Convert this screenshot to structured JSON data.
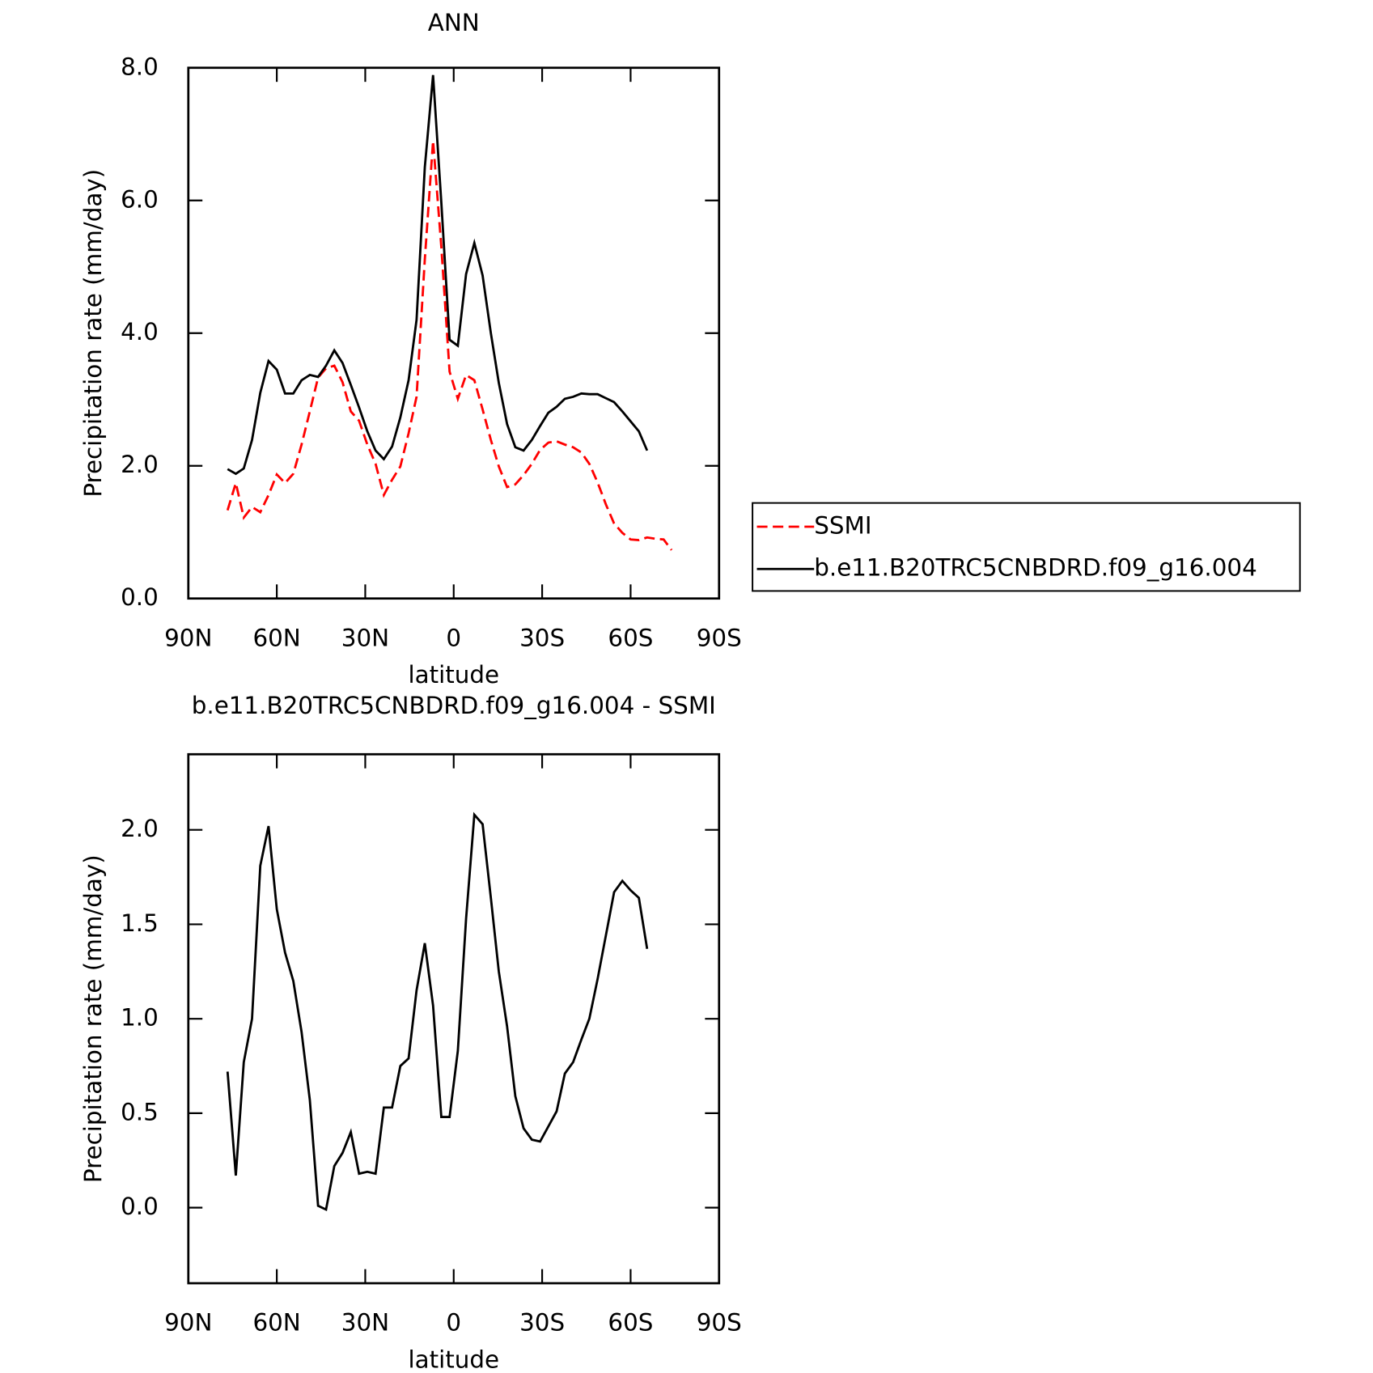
{
  "chart_data": [
    {
      "type": "line",
      "title": "ANN",
      "x_label": "latitude",
      "y_label": "Precipitation rate (mm/day)",
      "x": [
        76.7,
        73.9,
        71.2,
        68.4,
        65.6,
        62.8,
        60.0,
        57.2,
        54.4,
        51.6,
        48.8,
        46.0,
        43.3,
        40.5,
        37.7,
        34.9,
        32.1,
        29.3,
        26.5,
        23.7,
        20.9,
        18.1,
        15.3,
        12.6,
        9.8,
        7.0,
        4.2,
        1.4,
        -1.4,
        -4.2,
        -7.0,
        -9.8,
        -12.6,
        -15.3,
        -18.1,
        -20.9,
        -23.7,
        -26.5,
        -29.3,
        -32.1,
        -34.9,
        -37.7,
        -40.5,
        -43.3,
        -46.0,
        -48.8,
        -51.6,
        -54.4,
        -57.2,
        -60.0,
        -62.8,
        -65.6,
        -68.4,
        -71.2,
        -73.9
      ],
      "series": [
        {
          "name": "SSMI",
          "color": "#ff0000",
          "dash": "dashed",
          "values": [
            1.33,
            1.74,
            1.22,
            1.38,
            1.3,
            1.56,
            1.87,
            1.74,
            1.88,
            2.32,
            2.82,
            3.33,
            3.47,
            3.51,
            3.26,
            2.82,
            2.68,
            2.32,
            2.03,
            1.56,
            1.79,
            1.99,
            2.49,
            3.04,
            5.11,
            6.9,
            5.3,
            3.42,
            3.01,
            3.37,
            3.29,
            2.85,
            2.39,
            1.99,
            1.68,
            1.72,
            1.86,
            2.03,
            2.24,
            2.35,
            2.37,
            2.32,
            2.28,
            2.2,
            2.03,
            1.75,
            1.42,
            1.13,
            0.99,
            0.89,
            0.88,
            0.92,
            0.9,
            0.89,
            0.73
          ]
        },
        {
          "name": "b.e11.B20TRC5CNBDRD.f09_g16.004",
          "color": "#000000",
          "dash": "solid",
          "values": [
            1.95,
            1.88,
            1.96,
            2.39,
            3.1,
            3.58,
            3.45,
            3.09,
            3.09,
            3.29,
            3.37,
            3.34,
            3.51,
            3.74,
            3.55,
            3.22,
            2.88,
            2.52,
            2.23,
            2.1,
            2.29,
            2.73,
            3.29,
            4.2,
            6.5,
            7.89,
            5.97,
            3.9,
            3.81,
            4.89,
            5.36,
            4.87,
            4.0,
            3.25,
            2.63,
            2.28,
            2.23,
            2.39,
            2.6,
            2.8,
            2.89,
            3.01,
            3.04,
            3.09,
            3.08,
            3.08,
            3.02,
            2.96,
            2.82,
            2.67,
            2.52,
            2.23,
            null,
            null,
            null
          ]
        }
      ],
      "xlim": [
        90,
        -90
      ],
      "xticks": [
        {
          "value": 90,
          "label": "90N"
        },
        {
          "value": 60,
          "label": "60N"
        },
        {
          "value": 30,
          "label": "30N"
        },
        0,
        {
          "value": -30,
          "label": "30S"
        },
        {
          "value": -60,
          "label": "60S"
        },
        {
          "value": -90,
          "label": "90S"
        }
      ],
      "ylim": [
        0,
        8
      ],
      "yticks": [
        {
          "value": 0,
          "label": "0.0"
        },
        {
          "value": 2,
          "label": "2.0"
        },
        {
          "value": 4,
          "label": "4.0"
        },
        {
          "value": 6,
          "label": "6.0"
        },
        {
          "value": 8,
          "label": "8.0"
        }
      ],
      "legend": "right"
    },
    {
      "type": "line",
      "title": "b.e11.B20TRC5CNBDRD.f09_g16.004 - SSMI",
      "x_label": "latitude",
      "y_label": "Precipitation rate (mm/day)",
      "x": [
        76.7,
        73.9,
        71.2,
        68.4,
        65.6,
        62.8,
        60.0,
        57.2,
        54.4,
        51.6,
        48.8,
        46.0,
        43.3,
        40.5,
        37.7,
        34.9,
        32.1,
        29.3,
        26.5,
        23.7,
        20.9,
        18.1,
        15.3,
        12.6,
        9.8,
        7.0,
        4.2,
        1.4,
        -1.4,
        -4.2,
        -7.0,
        -9.8,
        -12.6,
        -15.3,
        -18.1,
        -20.9,
        -23.7,
        -26.5,
        -29.3,
        -32.1,
        -34.9,
        -37.7,
        -40.5,
        -43.3,
        -46.0,
        -48.8,
        -51.6,
        -54.4,
        -57.2,
        -60.0,
        -62.8,
        -65.6
      ],
      "color": "#000000",
      "values": [
        0.72,
        0.17,
        0.77,
        1.0,
        1.81,
        2.02,
        1.58,
        1.35,
        1.2,
        0.93,
        0.57,
        0.01,
        -0.01,
        0.22,
        0.29,
        0.4,
        0.18,
        0.19,
        0.18,
        0.53,
        0.53,
        0.75,
        0.79,
        1.15,
        1.4,
        1.07,
        0.48,
        0.48,
        0.83,
        1.53,
        2.08,
        2.03,
        1.64,
        1.25,
        0.96,
        0.59,
        0.42,
        0.36,
        0.35,
        0.43,
        0.51,
        0.71,
        0.77,
        0.89,
        1.0,
        1.21,
        1.44,
        1.67,
        1.73,
        1.68,
        1.64,
        1.37
      ],
      "xlim": [
        90,
        -90
      ],
      "xticks": [
        {
          "value": 90,
          "label": "90N"
        },
        {
          "value": 60,
          "label": "60N"
        },
        {
          "value": 30,
          "label": "30N"
        },
        0,
        {
          "value": -30,
          "label": "30S"
        },
        {
          "value": -60,
          "label": "60S"
        },
        {
          "value": -90,
          "label": "90S"
        }
      ],
      "ylim": [
        -0.4,
        2.4
      ],
      "yticks": [
        {
          "value": 0,
          "label": "0.0"
        },
        {
          "value": 0.5,
          "label": "0.5"
        },
        {
          "value": 1,
          "label": "1.0"
        },
        {
          "value": 1.5,
          "label": "1.5"
        },
        {
          "value": 2,
          "label": "2.0"
        }
      ]
    }
  ]
}
